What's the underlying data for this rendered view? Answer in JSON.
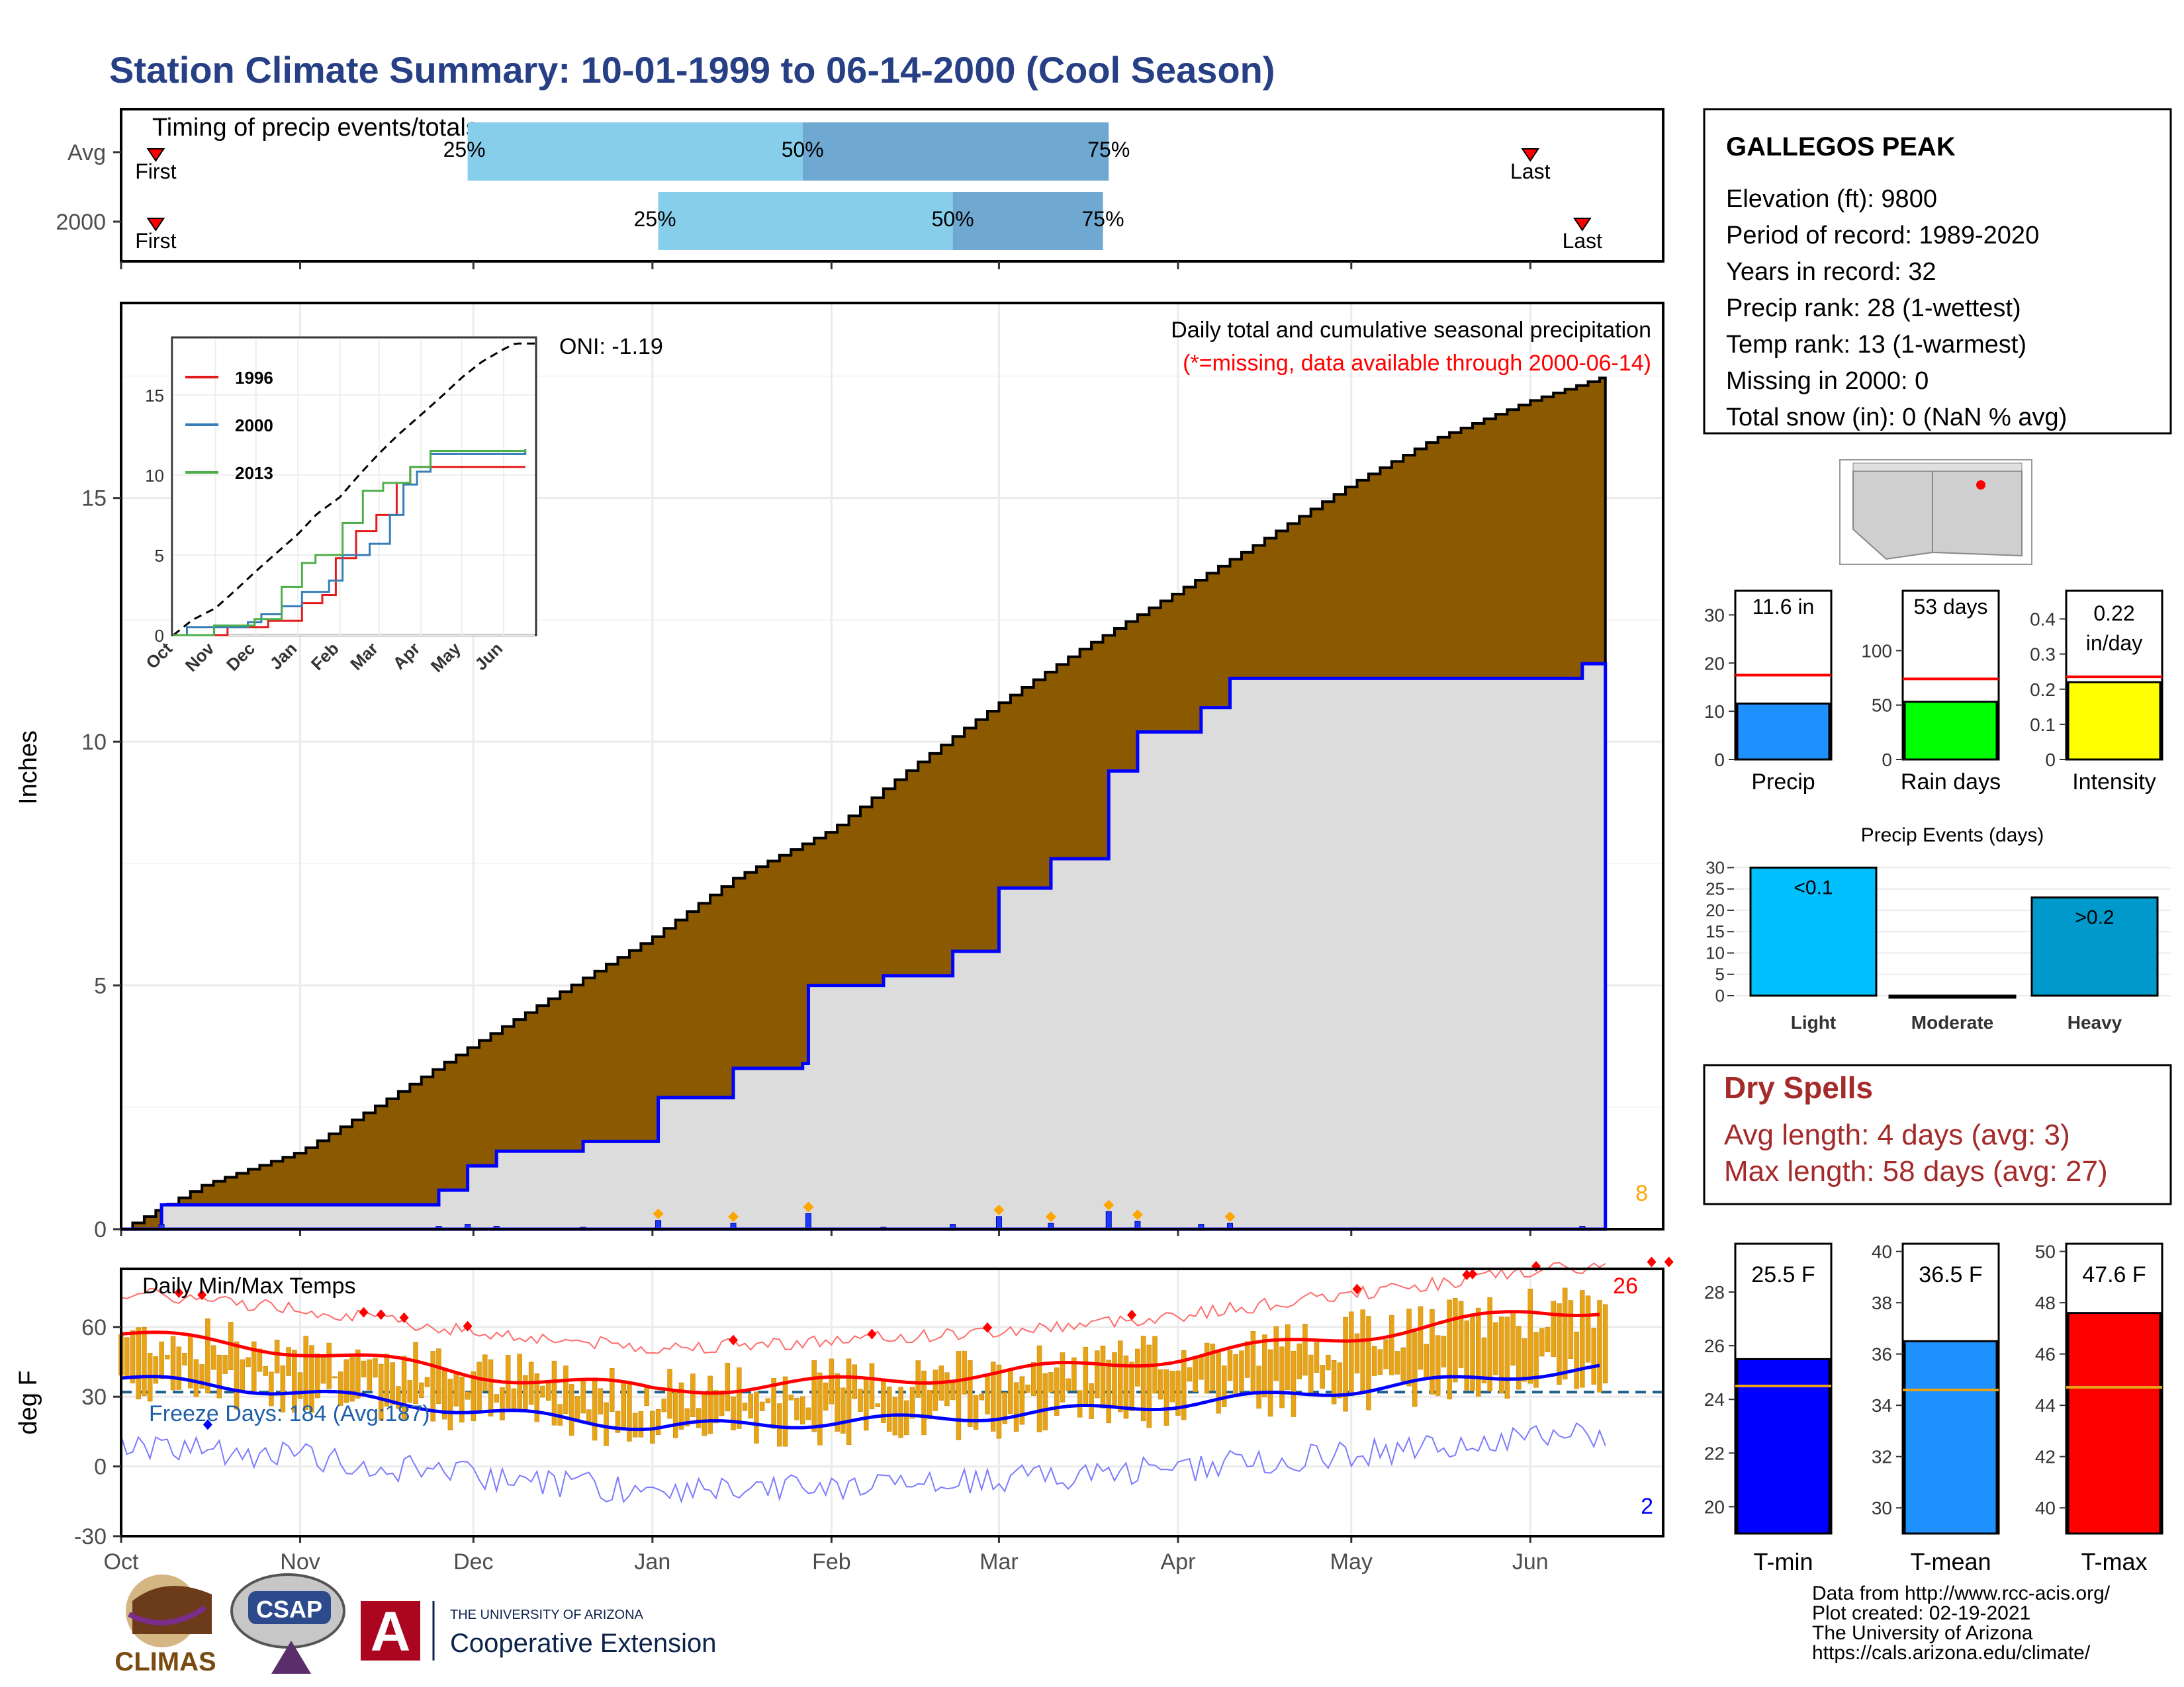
{
  "title": "Station Climate Summary: 10-01-1999 to 06-14-2000 (Cool Season)",
  "colors": {
    "title": "#263f85",
    "cumulative_fill": "#8b5a00",
    "season_fill": "#dcdcdc",
    "season_line": "#0000ff",
    "bars_light": "#87ceeb",
    "bars_dark": "#6fa8d0",
    "dry_red": "#a52a2a",
    "temp_band": "#e8a317"
  },
  "station": {
    "name": "GALLEGOS PEAK",
    "elevation": "Elevation (ft): 9800",
    "period": "Period of record: 1989-2020",
    "years": "Years in record: 32",
    "precip_rank": "Precip rank: 28 (1-wettest)",
    "temp_rank": "Temp rank: 13 (1-warmest)",
    "missing": "Missing in 2000: 0",
    "snow": "Total snow (in): 0 (NaN % avg)"
  },
  "timing": {
    "title": "Timing of precip events/totals",
    "rows": [
      {
        "label": "Avg",
        "first": "First",
        "last": "Last",
        "p25": "25%",
        "p50": "50%",
        "p75": "75%",
        "p25_date": "1999-11-30",
        "p50_date": "2000-01-27",
        "p75_date": "2000-03-20",
        "first_date": "1999-10-07",
        "last_date": "2000-06-01"
      },
      {
        "label": "2000",
        "first": "First",
        "last": "Last",
        "p25": "25%",
        "p50": "50%",
        "p75": "75%",
        "p25_date": "2000-01-02",
        "p50_date": "2000-02-22",
        "p75_date": "2000-03-19",
        "first_date": "1999-10-07",
        "last_date": "2000-06-10"
      }
    ]
  },
  "main_chart": {
    "ylabel": "Inches",
    "oni": "ONI: -1.19",
    "legend_title": "Daily total and cumulative seasonal precipitation",
    "legend_note": "(*=missing, data available through 2000-06-14)",
    "count_label": "8"
  },
  "inset": {
    "series": [
      "1996",
      "2000",
      "2013"
    ],
    "series_colors": [
      "#e41a1c",
      "#377eb8",
      "#4daf4a"
    ],
    "months": [
      "Oct",
      "Nov",
      "Dec",
      "Jan",
      "Feb",
      "Mar",
      "Apr",
      "May",
      "Jun"
    ],
    "yticks": [
      "0",
      "5",
      "10",
      "15"
    ]
  },
  "temp_chart": {
    "ylabel": "deg F",
    "title": "Daily Min/Max Temps",
    "freeze": "Freeze Days: 184 (Avg:187)",
    "max_count": "26",
    "min_count": "2",
    "yticks": [
      "-30",
      "0",
      "30",
      "60"
    ]
  },
  "x_months": [
    "Oct",
    "Nov",
    "Dec",
    "Jan",
    "Feb",
    "Mar",
    "Apr",
    "May",
    "Jun"
  ],
  "chart_data": [
    {
      "type": "area",
      "title": "Daily total and cumulative seasonal precipitation",
      "ylabel": "Inches",
      "ylim": [
        0,
        19
      ],
      "series": [
        {
          "name": "cumulative_avg",
          "x": [
            "1999-10-01",
            "1999-10-15",
            "1999-11-01",
            "1999-11-15",
            "1999-12-01",
            "1999-12-15",
            "2000-01-01",
            "2000-01-15",
            "2000-02-01",
            "2000-02-15",
            "2000-03-01",
            "2000-03-15",
            "2000-04-01",
            "2000-04-15",
            "2000-05-01",
            "2000-05-15",
            "2000-06-01",
            "2000-06-14"
          ],
          "values": [
            0.0,
            0.9,
            1.6,
            2.6,
            3.8,
            4.8,
            6.0,
            7.2,
            8.2,
            9.5,
            10.8,
            11.9,
            13.1,
            14.1,
            15.3,
            16.2,
            17.0,
            17.5
          ]
        },
        {
          "name": "2000",
          "x": [
            "1999-10-01",
            "1999-10-08",
            "1999-11-25",
            "1999-11-30",
            "1999-12-05",
            "1999-12-20",
            "2000-01-02",
            "2000-01-15",
            "2000-01-27",
            "2000-01-28",
            "2000-02-10",
            "2000-02-22",
            "2000-03-01",
            "2000-03-10",
            "2000-03-20",
            "2000-03-25",
            "2000-04-05",
            "2000-04-10",
            "2000-06-10",
            "2000-06-14"
          ],
          "values": [
            0.0,
            0.5,
            0.8,
            1.3,
            1.6,
            1.8,
            2.7,
            3.3,
            3.4,
            5.0,
            5.2,
            5.7,
            7.0,
            7.6,
            9.4,
            10.2,
            10.7,
            11.3,
            11.6,
            11.6
          ]
        }
      ]
    },
    {
      "type": "line",
      "title": "Daily Min/Max Temps",
      "ylabel": "deg F",
      "ylim": [
        -30,
        85
      ],
      "x": [
        "1999-10-01",
        "1999-11-01",
        "1999-12-01",
        "2000-01-01",
        "2000-02-01",
        "2000-03-01",
        "2000-04-01",
        "2000-05-01",
        "2000-06-01",
        "2000-06-14"
      ],
      "series": [
        {
          "name": "avg_max",
          "values": [
            57,
            50,
            40,
            33,
            36,
            40,
            47,
            56,
            66,
            68
          ]
        },
        {
          "name": "avg_min",
          "values": [
            38,
            32,
            24,
            17,
            19,
            22,
            27,
            33,
            40,
            42
          ]
        }
      ]
    },
    {
      "type": "bar",
      "categories": [
        "Precip",
        "Rain days",
        "Intensity"
      ],
      "values": [
        11.6,
        53,
        0.22
      ],
      "labels": [
        "11.6 in",
        "53 days",
        "0.22 in/day"
      ],
      "averages": [
        17.5,
        74,
        0.235
      ]
    },
    {
      "type": "bar",
      "title": "Precip Events (days)",
      "categories": [
        "Light",
        "Moderate",
        "Heavy"
      ],
      "values": [
        30,
        0,
        23
      ],
      "labels": [
        "<0.1",
        "",
        ">0.2"
      ]
    },
    {
      "type": "bar",
      "categories": [
        "T-min",
        "T-mean",
        "T-max"
      ],
      "values": [
        25.5,
        36.5,
        47.6
      ],
      "labels": [
        "25.5 F",
        "36.5 F",
        "47.6 F"
      ],
      "averages": [
        24.5,
        34.6,
        44.7
      ]
    }
  ],
  "dry_spells": {
    "title": "Dry Spells",
    "avg": "Avg length: 4 days (avg: 3)",
    "max": "Max length: 58 days (avg: 27)"
  },
  "footer": {
    "line1": "Data from http://www.rcc-acis.org/",
    "line2": "Plot created: 02-19-2021",
    "line3": "The University of Arizona",
    "line4": "https://cals.arizona.edu/climate/"
  },
  "logos": {
    "climas": "CLIMAS",
    "csap": "CSAP",
    "ua_top": "THE UNIVERSITY OF ARIZONA",
    "ua_main": "Cooperative Extension",
    "ua_letter": "A"
  }
}
